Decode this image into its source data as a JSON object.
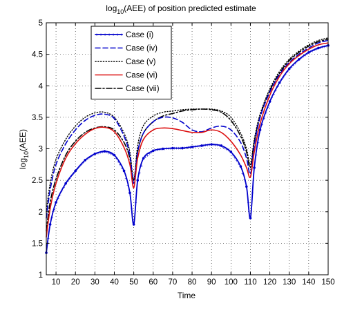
{
  "chart_data": {
    "type": "line",
    "title_main": "log",
    "title_sub": "10",
    "title_rest": "(AEE) of position predicted estimate",
    "xlabel": "Time",
    "ylabel_main": "log",
    "ylabel_sub": "10",
    "ylabel_rest": "(AEE)",
    "xlim": [
      5,
      150
    ],
    "ylim": [
      1,
      5
    ],
    "xticks": [
      10,
      20,
      30,
      40,
      50,
      60,
      70,
      80,
      90,
      100,
      110,
      120,
      130,
      140,
      150
    ],
    "yticks": [
      1,
      1.5,
      2,
      2.5,
      3,
      3.5,
      4,
      4.5,
      5
    ],
    "grid": true,
    "legend_position": "top-left",
    "series": [
      {
        "name": "Case (i)",
        "color": "#0000cc",
        "style": "solid-marker",
        "x": [
          5,
          7,
          10,
          15,
          20,
          25,
          30,
          35,
          40,
          45,
          48,
          50,
          52,
          55,
          60,
          65,
          70,
          75,
          80,
          85,
          90,
          95,
          100,
          105,
          108,
          110,
          112,
          115,
          120,
          125,
          130,
          135,
          140,
          145,
          150
        ],
        "y": [
          1.35,
          1.8,
          2.15,
          2.45,
          2.65,
          2.82,
          2.92,
          2.96,
          2.9,
          2.65,
          2.3,
          1.8,
          2.5,
          2.85,
          2.97,
          3.0,
          3.01,
          3.01,
          3.03,
          3.05,
          3.07,
          3.05,
          2.95,
          2.72,
          2.4,
          1.9,
          2.7,
          3.3,
          3.75,
          4.05,
          4.27,
          4.42,
          4.53,
          4.6,
          4.64
        ]
      },
      {
        "name": "Case (iv)",
        "color": "#0000cc",
        "style": "dashed",
        "x": [
          5,
          7,
          10,
          15,
          20,
          25,
          30,
          35,
          40,
          45,
          48,
          50,
          52,
          55,
          60,
          65,
          70,
          75,
          80,
          85,
          90,
          95,
          100,
          105,
          108,
          110,
          112,
          115,
          120,
          125,
          130,
          135,
          140,
          145,
          150
        ],
        "y": [
          1.9,
          2.35,
          2.75,
          3.08,
          3.3,
          3.45,
          3.53,
          3.55,
          3.48,
          3.2,
          2.9,
          2.45,
          2.95,
          3.25,
          3.43,
          3.5,
          3.49,
          3.42,
          3.3,
          3.27,
          3.33,
          3.36,
          3.3,
          3.1,
          2.85,
          2.6,
          3.05,
          3.5,
          3.9,
          4.18,
          4.37,
          4.5,
          4.6,
          4.68,
          4.72
        ]
      },
      {
        "name": "Case (v)",
        "color": "#000000",
        "style": "dotted",
        "x": [
          5,
          7,
          10,
          15,
          20,
          25,
          30,
          35,
          40,
          45,
          48,
          50,
          52,
          55,
          60,
          65,
          70,
          75,
          80,
          85,
          90,
          95,
          100,
          105,
          108,
          110,
          112,
          115,
          120,
          125,
          130,
          135,
          140,
          145,
          150
        ],
        "y": [
          2.0,
          2.45,
          2.83,
          3.15,
          3.36,
          3.5,
          3.57,
          3.58,
          3.5,
          3.25,
          2.95,
          2.5,
          3.05,
          3.37,
          3.52,
          3.58,
          3.6,
          3.62,
          3.63,
          3.63,
          3.63,
          3.6,
          3.5,
          3.25,
          3.0,
          2.75,
          3.15,
          3.55,
          3.95,
          4.23,
          4.42,
          4.55,
          4.65,
          4.72,
          4.76
        ]
      },
      {
        "name": "Case (vi)",
        "color": "#dd1111",
        "style": "solid",
        "x": [
          5,
          7,
          10,
          15,
          20,
          25,
          30,
          35,
          40,
          45,
          48,
          50,
          52,
          55,
          60,
          65,
          70,
          75,
          80,
          85,
          90,
          95,
          100,
          105,
          108,
          110,
          112,
          115,
          120,
          125,
          130,
          135,
          140,
          145,
          150
        ],
        "y": [
          1.6,
          2.05,
          2.45,
          2.85,
          3.08,
          3.23,
          3.32,
          3.34,
          3.27,
          3.02,
          2.75,
          2.38,
          2.85,
          3.15,
          3.3,
          3.33,
          3.32,
          3.29,
          3.26,
          3.26,
          3.3,
          3.26,
          3.12,
          2.9,
          2.7,
          2.55,
          2.95,
          3.4,
          3.85,
          4.15,
          4.35,
          4.48,
          4.58,
          4.65,
          4.68
        ]
      },
      {
        "name": "Case (vii)",
        "color": "#000000",
        "style": "dashdot",
        "x": [
          5,
          7,
          10,
          15,
          20,
          25,
          30,
          35,
          40,
          45,
          48,
          50,
          52,
          55,
          60,
          65,
          70,
          75,
          80,
          85,
          90,
          95,
          100,
          105,
          108,
          110,
          112,
          115,
          120,
          125,
          130,
          135,
          140,
          145,
          150
        ],
        "y": [
          1.7,
          2.15,
          2.52,
          2.9,
          3.12,
          3.26,
          3.33,
          3.35,
          3.3,
          3.1,
          2.85,
          2.5,
          2.95,
          3.25,
          3.43,
          3.52,
          3.56,
          3.6,
          3.62,
          3.63,
          3.62,
          3.58,
          3.45,
          3.2,
          2.95,
          2.7,
          3.1,
          3.52,
          3.92,
          4.2,
          4.4,
          4.53,
          4.63,
          4.7,
          4.74
        ]
      }
    ]
  }
}
